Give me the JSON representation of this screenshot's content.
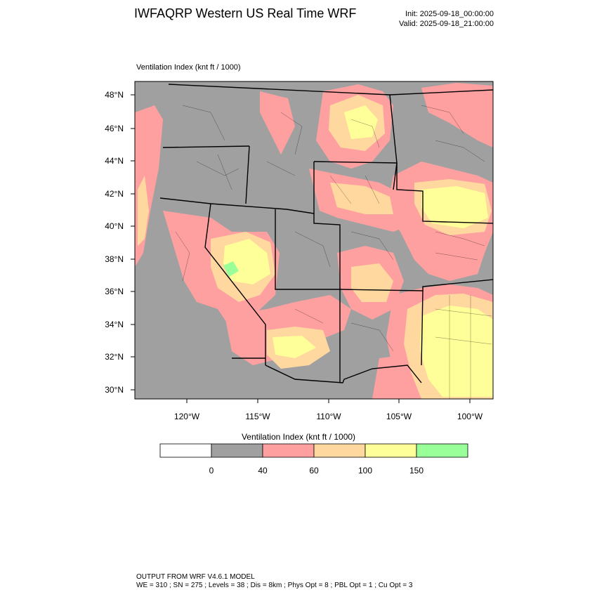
{
  "header": {
    "title": "IWFAQRP Western US Real Time WRF",
    "init": "Init: 2025-09-18_00:00:00",
    "valid": "Valid: 2025-09-18_21:00:00"
  },
  "plot": {
    "field_label": "Ventilation Index   (knt ft / 1000)",
    "lat_labels": [
      "48°N",
      "46°N",
      "44°N",
      "42°N",
      "40°N",
      "38°N",
      "36°N",
      "34°N",
      "32°N",
      "30°N"
    ],
    "lon_labels": [
      "120°W",
      "115°W",
      "110°W",
      "105°W",
      "100°W"
    ]
  },
  "colorbar": {
    "title": "Ventilation Index   (knt ft / 1000)",
    "tick_labels": [
      "0",
      "40",
      "60",
      "100",
      "150"
    ],
    "bins": [
      {
        "color": "#ffffff"
      },
      {
        "color": "#a0a0a0"
      },
      {
        "color": "#ffa0a0"
      },
      {
        "color": "#ffd8a0"
      },
      {
        "color": "#ffff99"
      },
      {
        "color": "#99ff99"
      }
    ]
  },
  "footer": {
    "line1": "OUTPUT FROM WRF V4.6.1 MODEL",
    "line2": "WE = 310 ; SN = 275 ; Levels = 38 ; Dis = 8km ; Phys Opt = 8 ; PBL Opt = 1 ; Cu Opt = 3"
  }
}
